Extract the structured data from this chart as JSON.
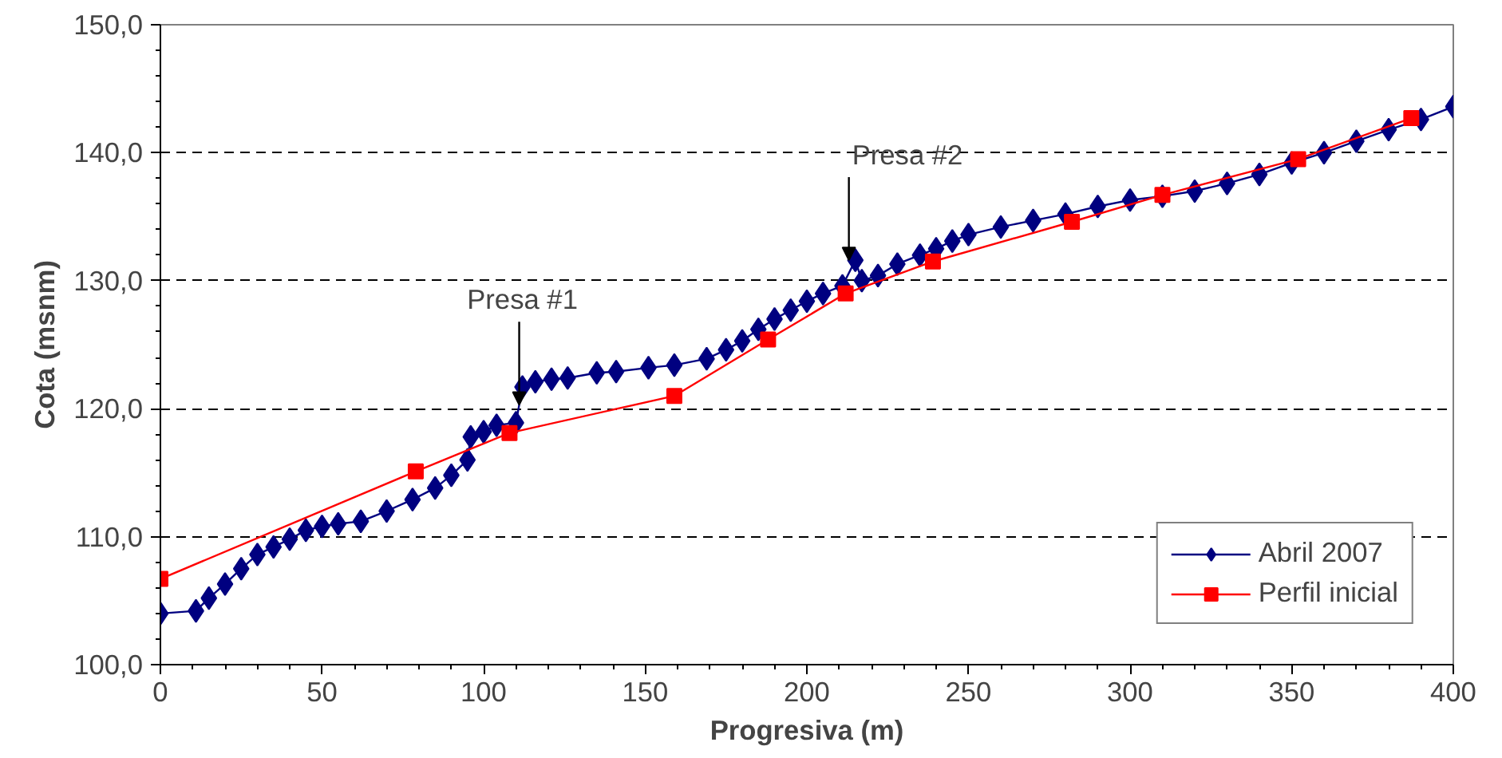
{
  "chart_data": {
    "type": "line",
    "xlabel": "Progresiva (m)",
    "ylabel": "Cota (msnm)",
    "xlim": [
      0,
      400
    ],
    "xticks": [
      0,
      50,
      100,
      150,
      200,
      250,
      300,
      350,
      400
    ],
    "ylim": [
      100,
      150
    ],
    "yticks": [
      {
        "value": 100,
        "label": "100,0"
      },
      {
        "value": 110,
        "label": "110,0"
      },
      {
        "value": 120,
        "label": "120,0"
      },
      {
        "value": 130,
        "label": "130,0"
      },
      {
        "value": 140,
        "label": "140,0"
      },
      {
        "value": 150,
        "label": "150,0"
      }
    ],
    "grid": "y",
    "legend": "bottom right",
    "line_style": "solid",
    "series": [
      {
        "name": "Abril 2007",
        "color": "#000080",
        "marker": "diamond",
        "x": [
          0,
          11,
          15,
          20,
          25,
          30,
          35,
          40,
          45,
          50,
          55,
          62,
          70,
          78,
          85,
          90,
          95,
          96,
          100,
          104,
          110,
          112,
          116,
          121,
          126,
          135,
          141,
          151,
          159,
          169,
          175,
          180,
          185,
          190,
          195,
          200,
          205,
          211,
          215,
          217,
          222,
          228,
          235,
          240,
          245,
          250,
          260,
          270,
          280,
          290,
          300,
          310,
          320,
          330,
          340,
          350,
          360,
          370,
          380,
          390,
          400
        ],
        "values": [
          104.0,
          104.2,
          105.2,
          106.3,
          107.5,
          108.6,
          109.2,
          109.8,
          110.5,
          110.8,
          111.0,
          111.2,
          112.0,
          112.9,
          113.8,
          114.8,
          116.0,
          117.8,
          118.2,
          118.7,
          118.9,
          121.7,
          122.1,
          122.3,
          122.4,
          122.8,
          122.9,
          123.2,
          123.4,
          123.9,
          124.6,
          125.3,
          126.2,
          127.0,
          127.7,
          128.4,
          129.0,
          129.6,
          131.6,
          130.0,
          130.4,
          131.3,
          132.0,
          132.5,
          133.1,
          133.6,
          134.2,
          134.7,
          135.2,
          135.8,
          136.3,
          136.6,
          137.0,
          137.6,
          138.3,
          139.2,
          140.0,
          140.9,
          141.8,
          142.6,
          143.6
        ]
      },
      {
        "name": "Perfil inicial",
        "color": "#ff0000",
        "marker": "square",
        "x": [
          0,
          79,
          108,
          159,
          188,
          212,
          239,
          282,
          310,
          352,
          387
        ],
        "values": [
          106.7,
          115.1,
          118.1,
          121.0,
          125.4,
          129.0,
          131.5,
          134.6,
          136.7,
          139.5,
          142.7
        ]
      }
    ],
    "annotations": [
      {
        "text": "Presa #1",
        "x": 111,
        "y": 120.3
      },
      {
        "text": "Presa #2",
        "x": 213,
        "y": 131.6
      }
    ]
  }
}
